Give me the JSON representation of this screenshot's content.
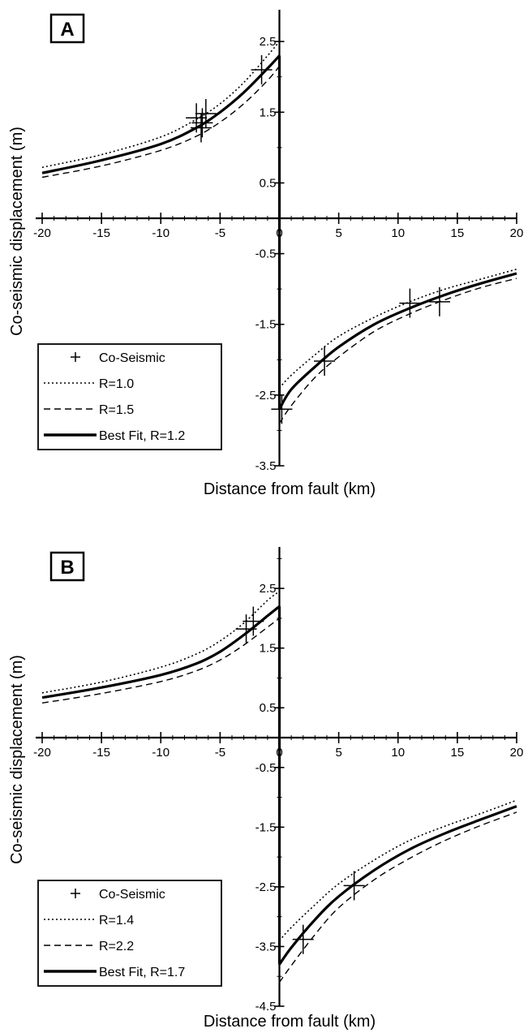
{
  "chart_data": [
    {
      "type": "line",
      "panel_label": "A",
      "xlabel": "Distance from fault (km)",
      "ylabel": "Co-seismic displacement (m)",
      "xlim": [
        -20,
        20
      ],
      "ylim": [
        -3.5,
        3.0
      ],
      "x_ticks": [
        "-20",
        "-15",
        "-10",
        "-5",
        "0",
        "5",
        "10",
        "15",
        "20"
      ],
      "y_ticks": [
        "2.5",
        "1.5",
        "0.5",
        "-0.5",
        "-1.5",
        "-2.5",
        "-3.5"
      ],
      "legend_position": "bottom-left",
      "series": [
        {
          "name": "R=1.0",
          "style": "dotted",
          "left": [
            [
              -20,
              0.72
            ],
            [
              -15,
              0.9
            ],
            [
              -10,
              1.15
            ],
            [
              -7,
              1.4
            ],
            [
              -5,
              1.62
            ],
            [
              -3,
              1.92
            ],
            [
              -1,
              2.3
            ],
            [
              0,
              2.5
            ]
          ],
          "right": [
            [
              0,
              -2.4
            ],
            [
              1,
              -2.22
            ],
            [
              3,
              -1.93
            ],
            [
              5,
              -1.67
            ],
            [
              8,
              -1.4
            ],
            [
              11,
              -1.18
            ],
            [
              14,
              -1.0
            ],
            [
              17,
              -0.86
            ],
            [
              20,
              -0.72
            ]
          ]
        },
        {
          "name": "R=1.5",
          "style": "dashed",
          "left": [
            [
              -20,
              0.58
            ],
            [
              -15,
              0.74
            ],
            [
              -10,
              0.96
            ],
            [
              -7,
              1.16
            ],
            [
              -5,
              1.36
            ],
            [
              -3,
              1.62
            ],
            [
              -1,
              1.95
            ],
            [
              0,
              2.15
            ]
          ],
          "right": [
            [
              0,
              -2.9
            ],
            [
              1,
              -2.65
            ],
            [
              3,
              -2.25
            ],
            [
              5,
              -1.96
            ],
            [
              8,
              -1.6
            ],
            [
              11,
              -1.35
            ],
            [
              14,
              -1.15
            ],
            [
              17,
              -0.98
            ],
            [
              20,
              -0.85
            ]
          ]
        },
        {
          "name": "Best Fit, R=1.2",
          "style": "solid",
          "left": [
            [
              -20,
              0.64
            ],
            [
              -15,
              0.82
            ],
            [
              -10,
              1.05
            ],
            [
              -7,
              1.28
            ],
            [
              -5,
              1.5
            ],
            [
              -3,
              1.78
            ],
            [
              -1,
              2.12
            ],
            [
              0,
              2.3
            ]
          ],
          "right": [
            [
              0,
              -2.7
            ],
            [
              1,
              -2.42
            ],
            [
              3,
              -2.1
            ],
            [
              5,
              -1.82
            ],
            [
              8,
              -1.5
            ],
            [
              11,
              -1.27
            ],
            [
              14,
              -1.08
            ],
            [
              17,
              -0.92
            ],
            [
              20,
              -0.78
            ]
          ]
        }
      ],
      "points": {
        "name": "Co-Seismic",
        "values": [
          [
            -7,
            1.42
          ],
          [
            -6.5,
            1.35
          ],
          [
            -6.2,
            1.48
          ],
          [
            -6.6,
            1.28
          ],
          [
            -1.5,
            2.1
          ],
          [
            0.2,
            -2.7
          ],
          [
            3.8,
            -2.02
          ],
          [
            11,
            -1.2
          ],
          [
            13.5,
            -1.18
          ]
        ]
      }
    },
    {
      "type": "line",
      "panel_label": "B",
      "xlabel": "Distance from fault (km)",
      "ylabel": "Co-seismic displacement (m)",
      "xlim": [
        -20,
        20
      ],
      "ylim": [
        -4.5,
        3.0
      ],
      "x_ticks": [
        "-20",
        "-15",
        "-10",
        "-5",
        "0",
        "5",
        "10",
        "15",
        "20"
      ],
      "y_ticks": [
        "2.5",
        "1.5",
        "0.5",
        "-0.5",
        "-1.5",
        "-2.5",
        "-3.5",
        "-4.5"
      ],
      "legend_position": "bottom-left",
      "series": [
        {
          "name": "R=1.4",
          "style": "dotted",
          "left": [
            [
              -20,
              0.75
            ],
            [
              -15,
              0.93
            ],
            [
              -10,
              1.18
            ],
            [
              -7,
              1.4
            ],
            [
              -5,
              1.62
            ],
            [
              -3,
              1.92
            ],
            [
              -1,
              2.3
            ],
            [
              0,
              2.45
            ]
          ],
          "right": [
            [
              0,
              -3.4
            ],
            [
              1,
              -3.18
            ],
            [
              3,
              -2.8
            ],
            [
              5,
              -2.45
            ],
            [
              8,
              -2.05
            ],
            [
              11,
              -1.72
            ],
            [
              14,
              -1.48
            ],
            [
              17,
              -1.27
            ],
            [
              20,
              -1.05
            ]
          ]
        },
        {
          "name": "R=2.2",
          "style": "dashed",
          "left": [
            [
              -20,
              0.58
            ],
            [
              -15,
              0.74
            ],
            [
              -10,
              0.94
            ],
            [
              -7,
              1.12
            ],
            [
              -5,
              1.3
            ],
            [
              -3,
              1.55
            ],
            [
              -1,
              1.85
            ],
            [
              0,
              2.0
            ]
          ],
          "right": [
            [
              0,
              -4.1
            ],
            [
              1,
              -3.82
            ],
            [
              3,
              -3.3
            ],
            [
              5,
              -2.85
            ],
            [
              8,
              -2.38
            ],
            [
              11,
              -2.02
            ],
            [
              14,
              -1.72
            ],
            [
              17,
              -1.47
            ],
            [
              20,
              -1.25
            ]
          ]
        },
        {
          "name": "Best Fit, R=1.7",
          "style": "solid",
          "left": [
            [
              -20,
              0.67
            ],
            [
              -15,
              0.84
            ],
            [
              -10,
              1.05
            ],
            [
              -7,
              1.24
            ],
            [
              -5,
              1.44
            ],
            [
              -3,
              1.72
            ],
            [
              -1,
              2.04
            ],
            [
              0,
              2.2
            ]
          ],
          "right": [
            [
              0,
              -3.8
            ],
            [
              1,
              -3.52
            ],
            [
              3,
              -3.05
            ],
            [
              5,
              -2.66
            ],
            [
              8,
              -2.22
            ],
            [
              11,
              -1.87
            ],
            [
              14,
              -1.6
            ],
            [
              17,
              -1.37
            ],
            [
              20,
              -1.15
            ]
          ]
        }
      ],
      "points": {
        "name": "Co-Seismic",
        "values": [
          [
            -2.8,
            1.82
          ],
          [
            -2.2,
            1.95
          ],
          [
            2.0,
            -3.38
          ],
          [
            6.3,
            -2.48
          ]
        ]
      }
    }
  ]
}
